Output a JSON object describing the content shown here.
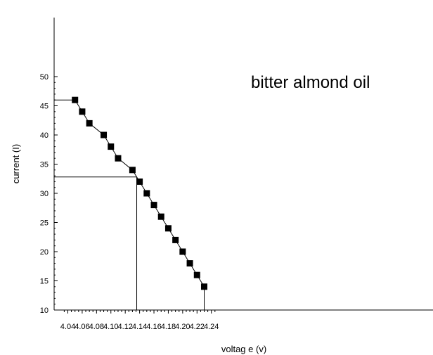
{
  "chart_data": {
    "type": "scatter",
    "title": "",
    "xlabel": "voltag e (v)",
    "ylabel": "current (I)",
    "annotation": "bitter almond oil",
    "xlim": [
      4.03,
      4.245
    ],
    "ylim": [
      10,
      50
    ],
    "x_ticks": [
      4.04,
      4.06,
      4.08,
      4.1,
      4.12,
      4.14,
      4.16,
      4.18,
      4.2,
      4.22,
      4.24
    ],
    "x_tick_labels": [
      "4.04",
      "4.06",
      "4.08",
      "4.10",
      "4.12",
      "4.14",
      "4.16",
      "4.18",
      "4.20",
      "4.22",
      "4.24"
    ],
    "y_ticks": [
      10,
      15,
      20,
      25,
      30,
      35,
      40,
      45,
      50
    ],
    "y_tick_labels": [
      "10",
      "15",
      "20",
      "25",
      "30",
      "35",
      "40",
      "45",
      "50"
    ],
    "grid": false,
    "series": [
      {
        "x": [
          4.05,
          4.06,
          4.07,
          4.09,
          4.1,
          4.11,
          4.13,
          4.14,
          4.15,
          4.16,
          4.17,
          4.18,
          4.19,
          4.2,
          4.21,
          4.22,
          4.23
        ],
        "y": [
          46,
          44,
          42,
          40,
          38,
          36,
          34,
          32,
          30,
          28,
          26,
          24,
          22,
          20,
          18,
          16,
          14
        ]
      }
    ],
    "reference_lines": {
      "intersection": {
        "x": 4.136,
        "y": 32.8
      },
      "left_plateau_y": 46,
      "right_drop_x": 4.23
    },
    "colors": {
      "marker": "#000000",
      "line": "#000000"
    }
  }
}
